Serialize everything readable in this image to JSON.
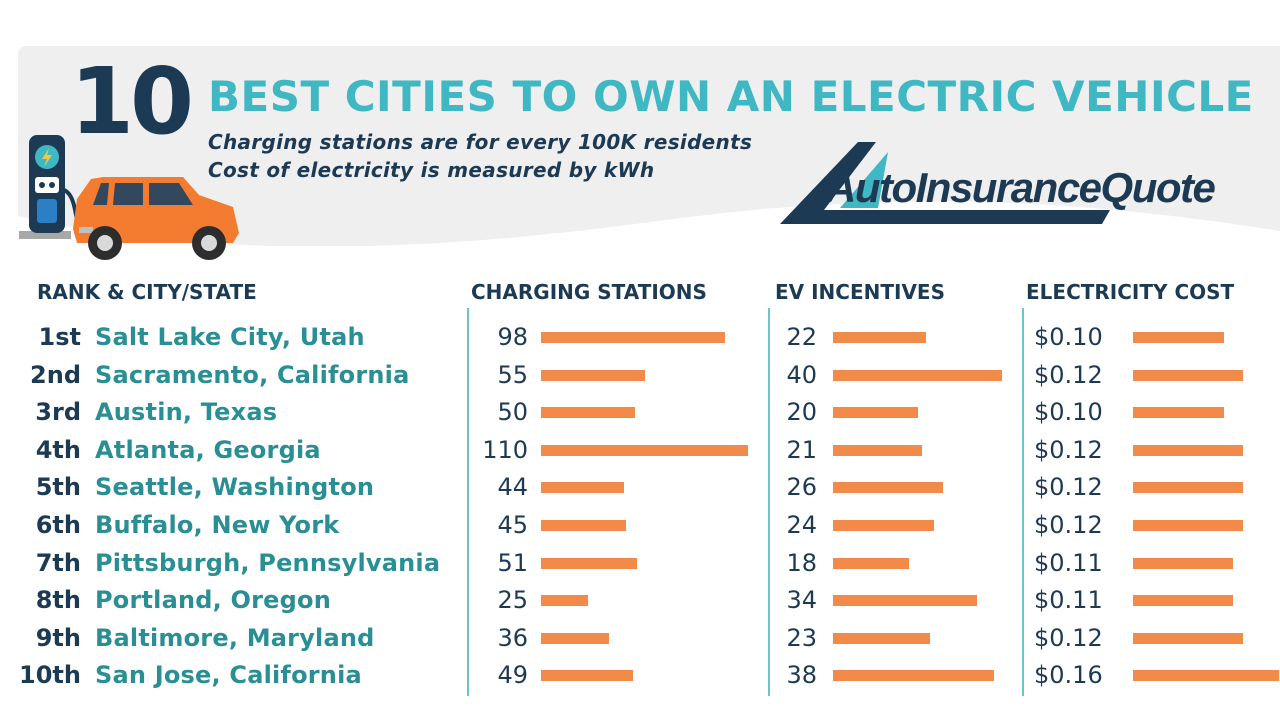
{
  "header": {
    "big_number": "10",
    "title": "BEST CITIES TO OWN AN ELECTRIC VEHICLE",
    "subtitle_1": "Charging stations are for every 100K residents",
    "subtitle_2": "Cost of electricity is measured by kWh",
    "logo_text": "AutoInsuranceQuote"
  },
  "colors": {
    "navy": "#1d3a55",
    "teal": "#3fb8c4",
    "city_teal": "#2a8f95",
    "bar_orange": "#f28a4a",
    "car_orange": "#f47c30"
  },
  "icons": [
    "charging-station-icon",
    "car-icon",
    "logo-swoosh-icon"
  ],
  "chart_data": {
    "type": "table",
    "columns": [
      "RANK & CITY/STATE",
      "CHARGING STATIONS",
      "EV INCENTIVES",
      "ELECTRICITY COST"
    ],
    "rows": [
      {
        "rank": "1st",
        "city": "Salt Lake City, Utah",
        "charging": 98,
        "incentives": 22,
        "cost": 0.1,
        "cost_label": "$0.10"
      },
      {
        "rank": "2nd",
        "city": "Sacramento, California",
        "charging": 55,
        "incentives": 40,
        "cost": 0.12,
        "cost_label": "$0.12"
      },
      {
        "rank": "3rd",
        "city": "Austin, Texas",
        "charging": 50,
        "incentives": 20,
        "cost": 0.1,
        "cost_label": "$0.10"
      },
      {
        "rank": "4th",
        "city": "Atlanta, Georgia",
        "charging": 110,
        "incentives": 21,
        "cost": 0.12,
        "cost_label": "$0.12"
      },
      {
        "rank": "5th",
        "city": "Seattle, Washington",
        "charging": 44,
        "incentives": 26,
        "cost": 0.12,
        "cost_label": "$0.12"
      },
      {
        "rank": "6th",
        "city": "Buffalo, New York",
        "charging": 45,
        "incentives": 24,
        "cost": 0.12,
        "cost_label": "$0.12"
      },
      {
        "rank": "7th",
        "city": "Pittsburgh, Pennsylvania",
        "charging": 51,
        "incentives": 18,
        "cost": 0.11,
        "cost_label": "$0.11"
      },
      {
        "rank": "8th",
        "city": "Portland, Oregon",
        "charging": 25,
        "incentives": 34,
        "cost": 0.11,
        "cost_label": "$0.11"
      },
      {
        "rank": "9th",
        "city": "Baltimore, Maryland",
        "charging": 36,
        "incentives": 23,
        "cost": 0.12,
        "cost_label": "$0.12"
      },
      {
        "rank": "10th",
        "city": "San Jose, California",
        "charging": 49,
        "incentives": 38,
        "cost": 0.16,
        "cost_label": "$0.16"
      }
    ]
  }
}
